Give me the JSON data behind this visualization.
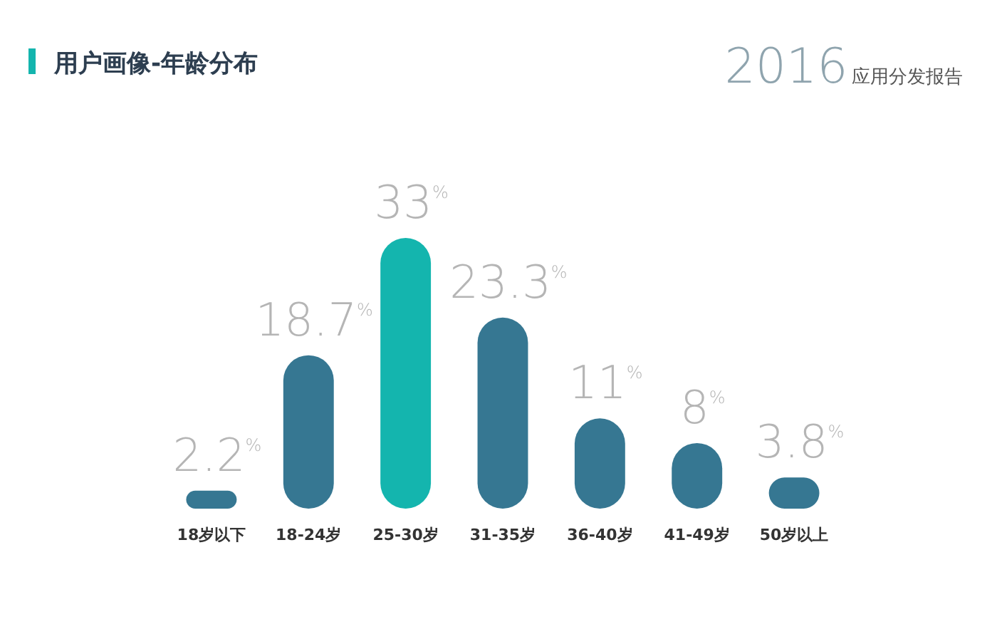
{
  "chart_data": {
    "type": "bar",
    "title": "用户画像-年龄分布",
    "annotations": [
      "2016",
      "应用分发报告"
    ],
    "categories": [
      "18岁以下",
      "18-24岁",
      "25-30岁",
      "31-35岁",
      "36-40岁",
      "41-49岁",
      "50岁以上"
    ],
    "values": [
      2.2,
      18.7,
      33,
      23.3,
      11,
      8,
      3.8
    ],
    "colors": [
      "#367792",
      "#367792",
      "#14b5ae",
      "#367792",
      "#367792",
      "#367792",
      "#367792"
    ],
    "value_labels": [
      "2.2$^{%}$",
      "18.7$^{%}$",
      "33$^{%}$",
      "23.3$^{%}$",
      "11$^{%}$",
      "8$^{%}$",
      "3.8$^{%}$"
    ]
  }
}
